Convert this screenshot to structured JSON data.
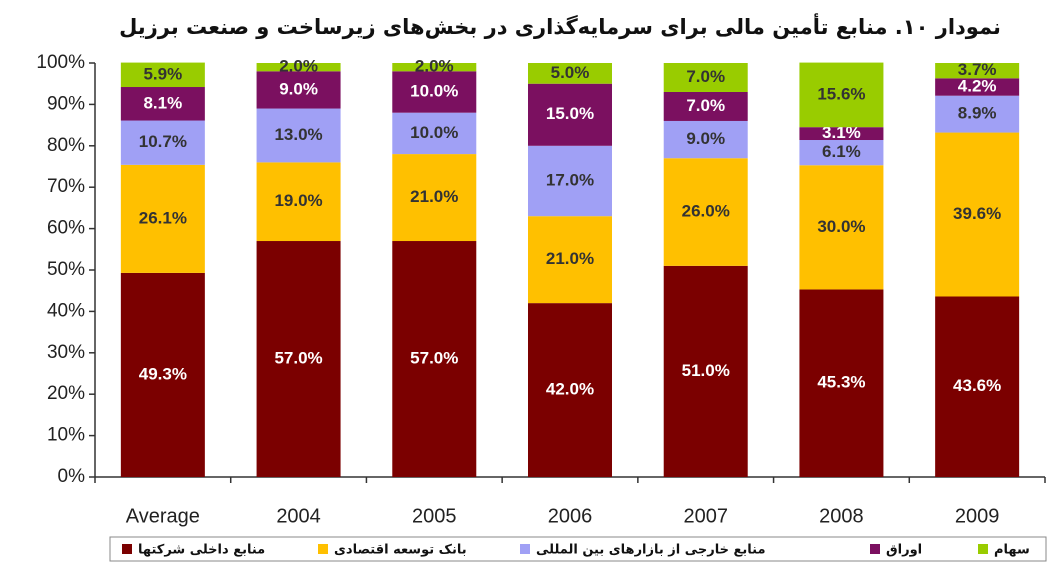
{
  "chart_data": {
    "type": "stacked_bar",
    "title": "نمودار ۱۰. منابع تأمین مالی برای سرمایه‌گذاری در بخش‌های زیرساخت و صنعت برزیل",
    "categories": [
      "Average",
      "2004",
      "2005",
      "2006",
      "2007",
      "2008",
      "2009"
    ],
    "series": [
      {
        "name": "منابع داخلی شرکتها",
        "color": "#7b0000",
        "values": [
          49.3,
          57.0,
          57.0,
          42.0,
          51.0,
          45.3,
          43.6
        ],
        "value_labels": [
          "49.3%",
          "57.0%",
          "57.0%",
          "42.0%",
          "51.0%",
          "45.3%",
          "43.6%"
        ]
      },
      {
        "name": "بانک توسعه اقتصادی",
        "color": "#ffc000",
        "values": [
          26.1,
          19.0,
          21.0,
          21.0,
          26.0,
          30.0,
          39.6
        ],
        "value_labels": [
          "26.1%",
          "19.0%",
          "21.0%",
          "21.0%",
          "26.0%",
          "30.0%",
          "39.6%"
        ]
      },
      {
        "name": "منابع خارجی از بازارهای بین المللی",
        "color": "#a0a0f5",
        "values": [
          10.7,
          13.0,
          10.0,
          17.0,
          9.0,
          6.1,
          8.9
        ],
        "value_labels": [
          "10.7%",
          "13.0%",
          "10.0%",
          "17.0%",
          "9.0%",
          "6.1%",
          "8.9%"
        ]
      },
      {
        "name": "اوراق",
        "color": "#7b1060",
        "values": [
          8.1,
          9.0,
          10.0,
          15.0,
          7.0,
          3.1,
          4.2
        ],
        "value_labels": [
          "8.1%",
          "9.0%",
          "10.0%",
          "15.0%",
          "7.0%",
          "3.1%",
          "4.2%"
        ]
      },
      {
        "name": "سهام",
        "color": "#99cc00",
        "values": [
          5.9,
          2.0,
          2.0,
          5.0,
          7.0,
          15.6,
          3.7
        ],
        "value_labels": [
          "5.9%",
          "2.0%",
          "2.0%",
          "5.0%",
          "7.0%",
          "15.6%",
          "3.7%"
        ]
      }
    ],
    "ylim": [
      0,
      100
    ],
    "yticks": [
      {
        "value": 0,
        "label": "0%"
      },
      {
        "value": 10,
        "label": "10%"
      },
      {
        "value": 20,
        "label": "20%"
      },
      {
        "value": 30,
        "label": "30%"
      },
      {
        "value": 40,
        "label": "40%"
      },
      {
        "value": 50,
        "label": "50%"
      },
      {
        "value": 60,
        "label": "60%"
      },
      {
        "value": 70,
        "label": "70%"
      },
      {
        "value": 80,
        "label": "80%"
      },
      {
        "value": 90,
        "label": "90%"
      },
      {
        "value": 100,
        "label": "100%"
      }
    ],
    "grid": false,
    "legend": "bottom"
  }
}
